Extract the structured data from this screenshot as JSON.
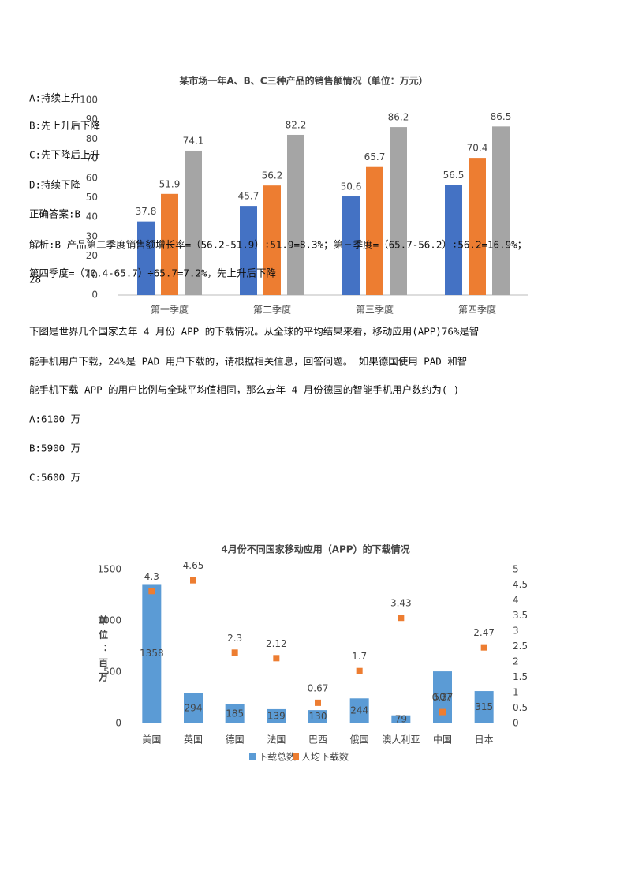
{
  "chart_data": [
    {
      "type": "bar",
      "title": "某市场一年A、B、C三种产品的销售额情况（单位：万元）",
      "categories": [
        "第一季度",
        "第二季度",
        "第三季度",
        "第四季度"
      ],
      "series": [
        {
          "color": "#4472c4",
          "values": [
            37.8,
            45.7,
            50.6,
            56.5
          ]
        },
        {
          "color": "#ed7d31",
          "values": [
            51.9,
            56.2,
            65.7,
            70.4
          ]
        },
        {
          "color": "#a5a5a5",
          "values": [
            74.1,
            82.2,
            86.2,
            86.5
          ]
        }
      ],
      "ylim": [
        0,
        100
      ],
      "yticks": [
        0,
        10,
        20,
        30,
        40,
        50,
        60,
        70,
        80,
        90,
        100
      ]
    },
    {
      "type": "bar-scatter",
      "title": "4月份不同国家移动应用（APP）的下载情况",
      "y_label": "单位：百万",
      "categories": [
        "美国",
        "英国",
        "德国",
        "法国",
        "巴西",
        "俄国",
        "澳大利亚",
        "中国",
        "日本"
      ],
      "series": [
        {
          "name": "下载总数",
          "color": "#5b9bd5",
          "values": [
            1358,
            294,
            185,
            139,
            130,
            244,
            79,
            507,
            315
          ]
        },
        {
          "name": "人均下载数",
          "color": "#ed7d31",
          "axis": "y2",
          "values": [
            4.3,
            4.65,
            2.3,
            2.12,
            0.67,
            1.7,
            3.43,
            0.37,
            2.47
          ]
        }
      ],
      "ylim": [
        0,
        1500
      ],
      "yticks": [
        0,
        500,
        1000,
        1500
      ],
      "y2lim": [
        0,
        5
      ],
      "y2ticks": [
        0,
        0.5,
        1,
        1.5,
        2,
        2.5,
        3,
        3.5,
        4,
        4.5,
        5
      ]
    }
  ],
  "document": {
    "lines": [
      "A:持续上升",
      "B:先上升后下降",
      "C:先下降后上升",
      "D:持续下降",
      "正确答案:B",
      "解析:B 产品第二季度销售额增长率=（56.2-51.9）÷51.9=8.3%；第三季度=（65.7-56.2）÷56.2=16.9%；",
      "第四季度=（70.4-65.7）÷65.7=7.2%，先上升后下降",
      "28",
      "下图是世界几个国家去年 4 月份 APP 的下载情况。从全球的平均结果来看，移动应用(APP)76%是智",
      "能手机用户下载，24%是 PAD 用户下载的，请根据相关信息，回答问题。 如果德国使用 PAD 和智",
      "能手机下载 APP 的用户比例与全球平均值相同，那么去年 4 月份德国的智能手机用户数约为( )",
      "A:6100 万",
      "B:5900 万",
      "C:5600 万"
    ]
  }
}
